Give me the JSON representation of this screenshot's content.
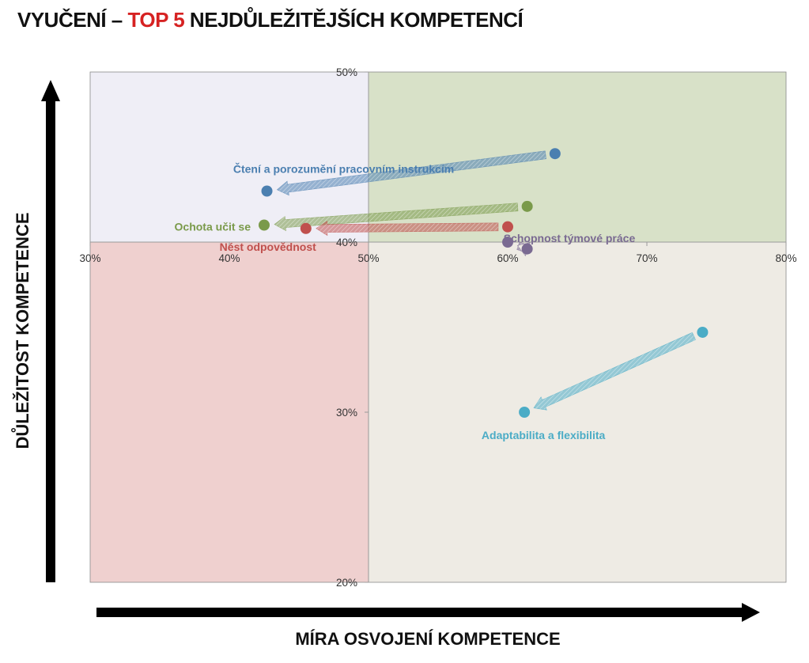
{
  "title": {
    "prefix": "VYUČENÍ – ",
    "highlight": "TOP 5",
    "suffix": " NEJDŮLEŽITĚJŠÍCH KOMPETENCÍ",
    "highlight_color": "#d62222"
  },
  "chart_data": {
    "type": "scatter",
    "xlabel": "MÍRA OSVOJENÍ KOMPETENCE",
    "ylabel": "DŮLEŽITOST KOMPETENCE",
    "xlim": [
      0.3,
      0.8
    ],
    "ylim": [
      0.2,
      0.5
    ],
    "xticks": [
      "30%",
      "40%",
      "50%",
      "60%",
      "70%",
      "80%"
    ],
    "yticks": [
      "50%",
      "40%",
      "30%",
      "20%"
    ],
    "quadrant_split": {
      "x": 0.5,
      "y": 0.4
    },
    "quadrant_colors": {
      "top_left": "#efeef6",
      "top_right": "#d8e1c8",
      "bottom_left": "#efd0cf",
      "bottom_right": "#eeebe4"
    },
    "series": [
      {
        "name": "Čtení a porozumění pracovním instrukcím",
        "color": "#4b7fb0",
        "from": {
          "x": 0.634,
          "y": 0.452
        },
        "to": {
          "x": 0.427,
          "y": 0.43
        }
      },
      {
        "name": "Ochota učit se",
        "color": "#7a9a4a",
        "from": {
          "x": 0.614,
          "y": 0.421
        },
        "to": {
          "x": 0.425,
          "y": 0.41
        }
      },
      {
        "name": "Nést odpovědnost",
        "color": "#c0504d",
        "from": {
          "x": 0.6,
          "y": 0.409
        },
        "to": {
          "x": 0.455,
          "y": 0.408
        }
      },
      {
        "name": "Schopnost týmové práce",
        "color": "#7a6a92",
        "from": {
          "x": 0.614,
          "y": 0.396
        },
        "to": {
          "x": 0.6,
          "y": 0.4
        }
      },
      {
        "name": "Adaptabilita a flexibilita",
        "color": "#4bacc6",
        "from": {
          "x": 0.74,
          "y": 0.347
        },
        "to": {
          "x": 0.612,
          "y": 0.3
        }
      }
    ]
  }
}
